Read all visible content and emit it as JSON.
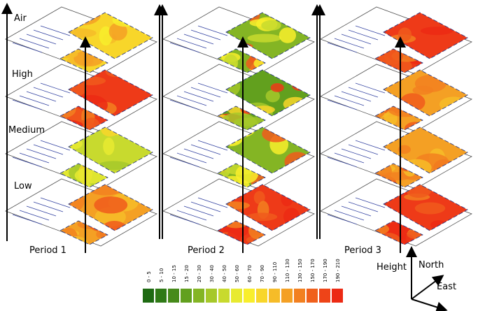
{
  "levels": [
    "Air",
    "High",
    "Medium",
    "Low"
  ],
  "periods": [
    "Period 1",
    "Period 2",
    "Period 3"
  ],
  "legend": [
    {
      "label": "0 - 5",
      "color": "#1e6a12"
    },
    {
      "label": "5 - 10",
      "color": "#2f7a16"
    },
    {
      "label": "10 - 15",
      "color": "#468a1a"
    },
    {
      "label": "15 - 20",
      "color": "#62a01e"
    },
    {
      "label": "20 - 30",
      "color": "#84b524"
    },
    {
      "label": "30 - 40",
      "color": "#a6c82a"
    },
    {
      "label": "40 - 50",
      "color": "#c8da2e"
    },
    {
      "label": "50 - 60",
      "color": "#e8ea30"
    },
    {
      "label": "60 - 70",
      "color": "#f8ee2c"
    },
    {
      "label": "70 - 90",
      "color": "#f8d62a"
    },
    {
      "label": "90 - 110",
      "color": "#f6bc28"
    },
    {
      "label": "110 - 130",
      "color": "#f4a024"
    },
    {
      "label": "130 - 150",
      "color": "#f28020"
    },
    {
      "label": "150 - 170",
      "color": "#f0601c"
    },
    {
      "label": "170 - 190",
      "color": "#ee4418"
    },
    {
      "label": "190 - 210",
      "color": "#ec2a14"
    }
  ],
  "axes": {
    "height": "Height",
    "north": "North",
    "east": "East"
  }
}
